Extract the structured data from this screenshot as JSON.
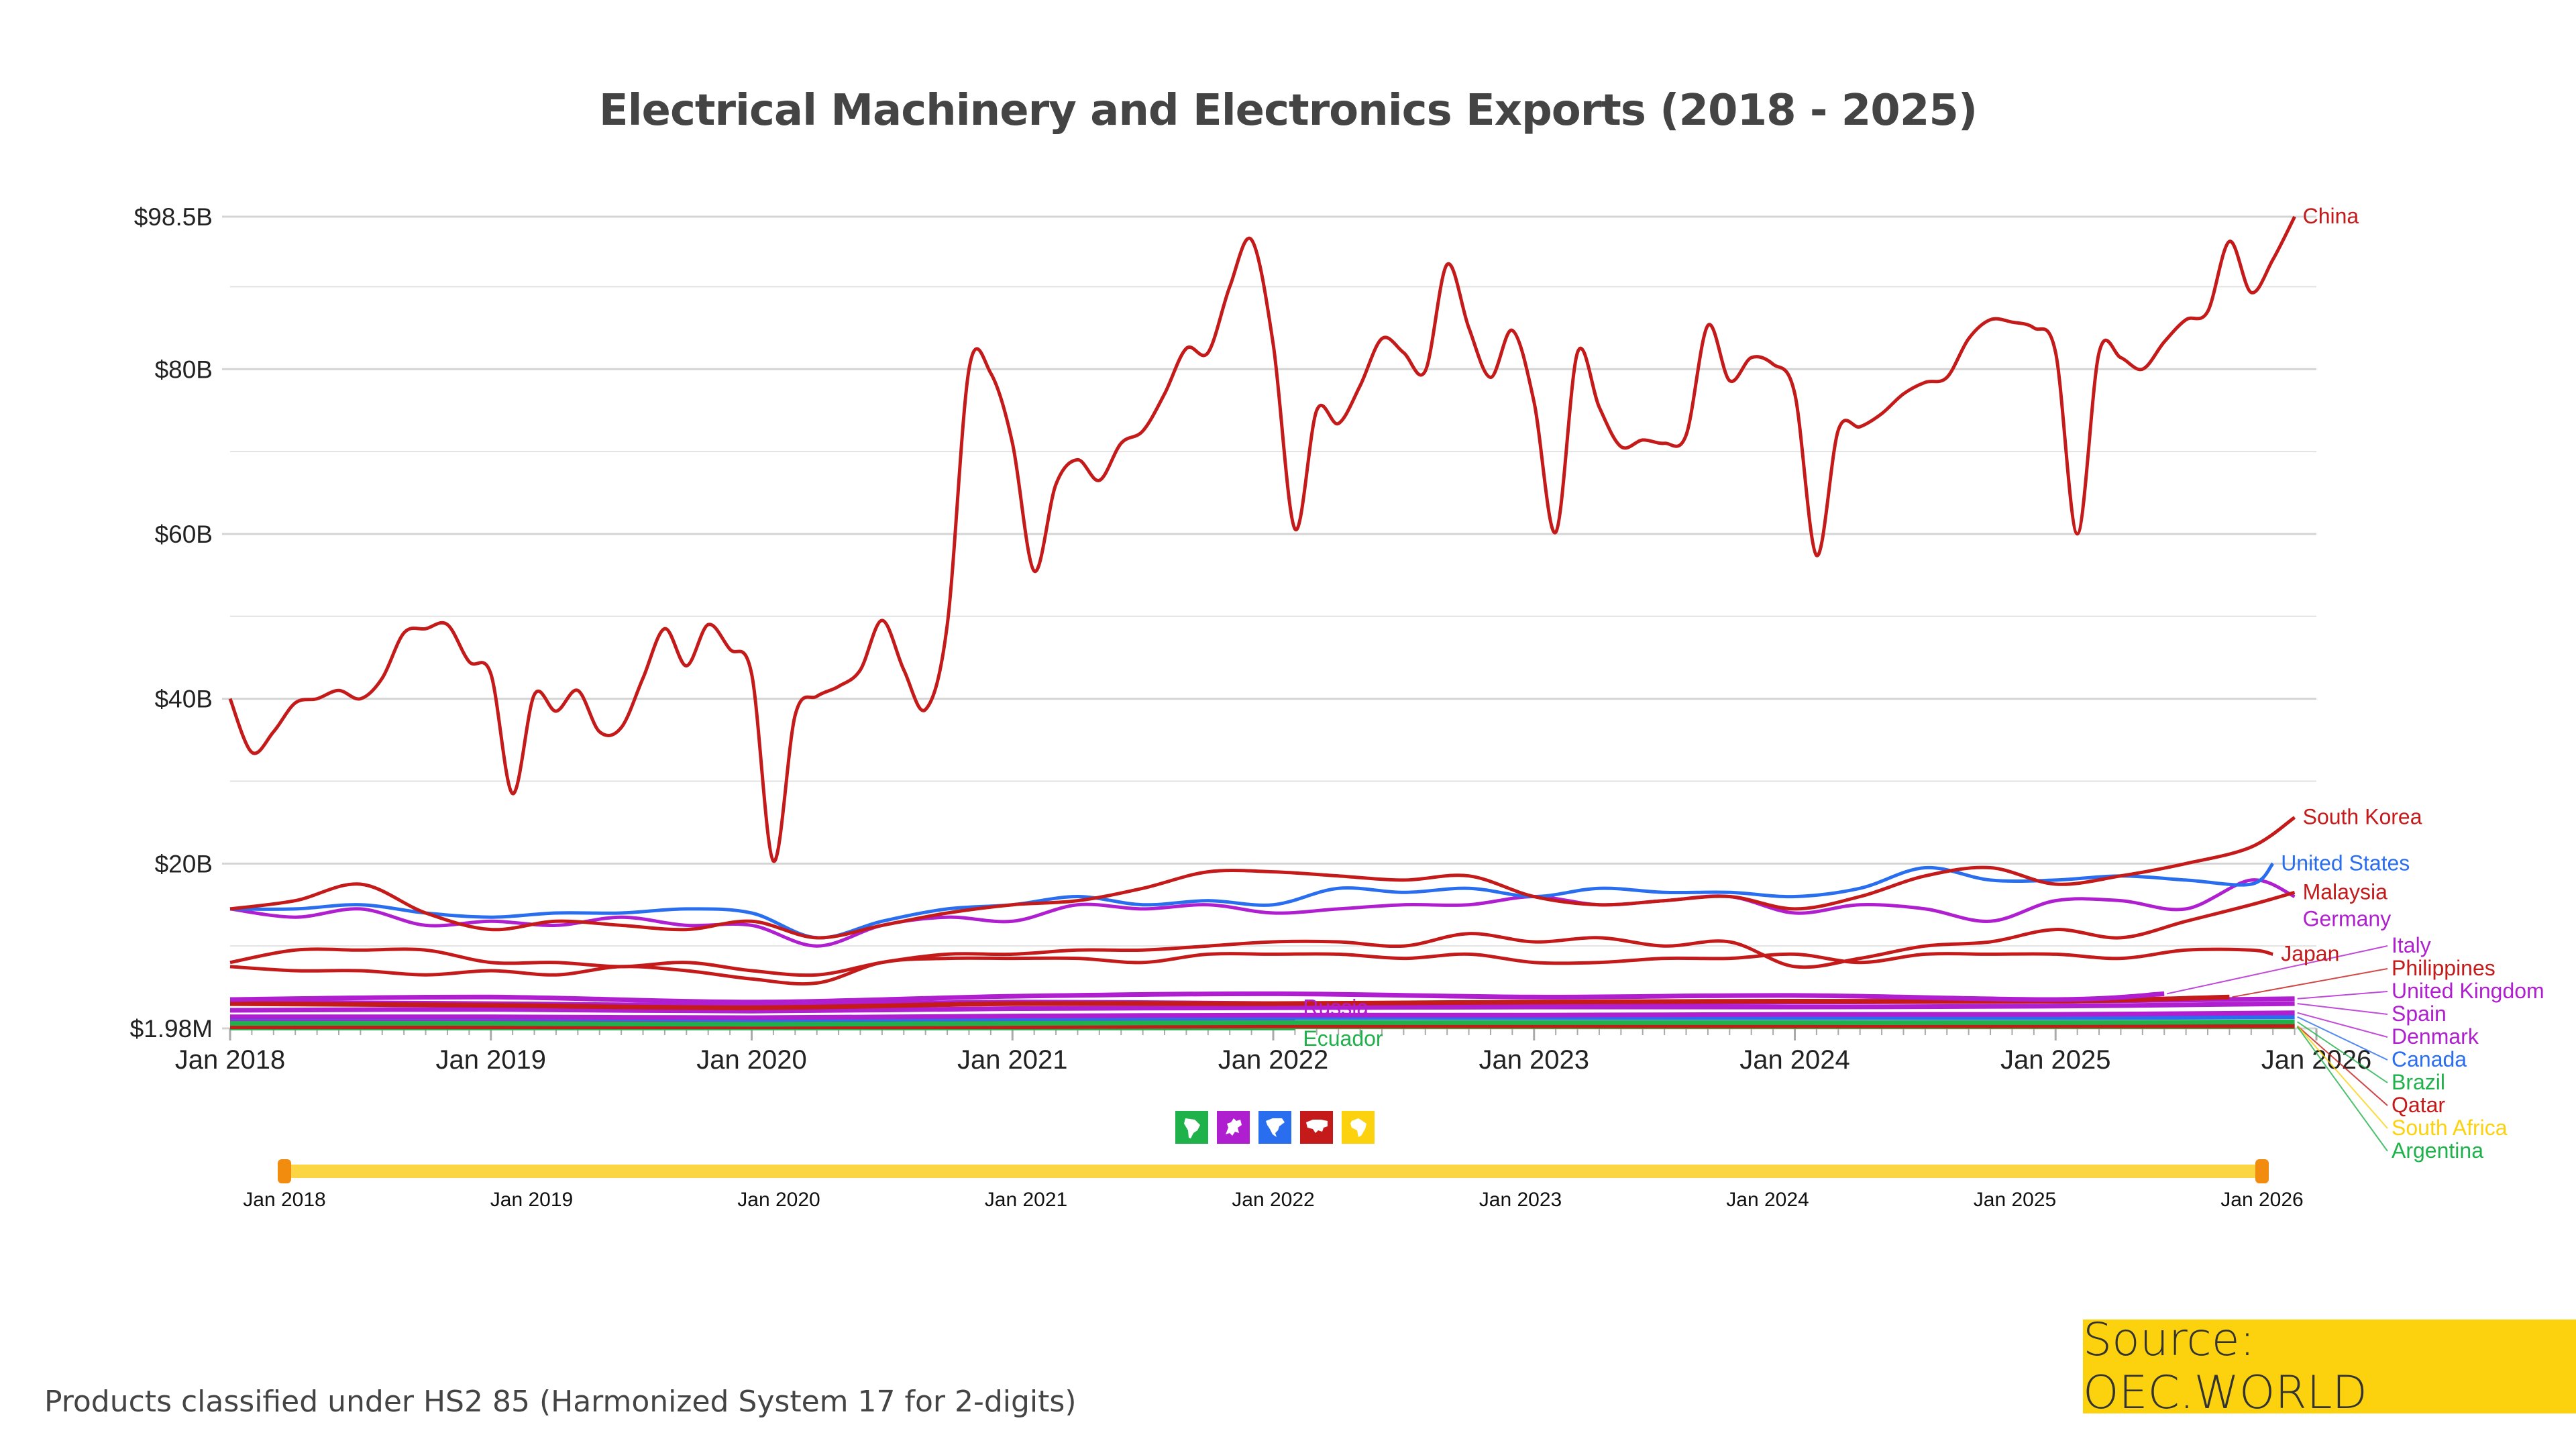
{
  "colors": {
    "asia": "#c41a1a",
    "europe": "#b01fcf",
    "north_america": "#2a6ef0",
    "south_america": "#1fb24a",
    "africa": "#fcd20f",
    "slider": "#fbd542",
    "slider_handle": "#f28c0f"
  },
  "continent_filters": [
    {
      "name": "South America",
      "icon": "south-america-icon",
      "color": "#1fb24a"
    },
    {
      "name": "Europe",
      "icon": "europe-icon",
      "color": "#b01fcf"
    },
    {
      "name": "North America",
      "icon": "north-america-icon",
      "color": "#2a6ef0"
    },
    {
      "name": "Asia",
      "icon": "asia-icon",
      "color": "#c41a1a"
    },
    {
      "name": "Africa",
      "icon": "africa-icon",
      "color": "#fcd20f"
    }
  ],
  "slider": {
    "range": [
      "Jan 2018",
      "Jan 2026"
    ],
    "labels": [
      "Jan 2018",
      "Jan 2019",
      "Jan 2020",
      "Jan 2021",
      "Jan 2022",
      "Jan 2023",
      "Jan 2024",
      "Jan 2025",
      "Jan 2026"
    ]
  },
  "footer": {
    "note": "Products classified under HS2 85 (Harmonized System 17 for 2-digits)",
    "source": "Source: OEC.WORLD"
  },
  "chart_data": {
    "type": "line",
    "title": "Electrical Machinery and Electronics Exports (2018 - 2025)",
    "xlabel": "",
    "ylabel": "",
    "unit": "billions USD",
    "xlim": [
      "2018-01",
      "2026-01"
    ],
    "ylim": [
      0.00198,
      98.5
    ],
    "y_ticks": [
      {
        "value": 98.5,
        "label": "$98.5B"
      },
      {
        "value": 80,
        "label": "$80B"
      },
      {
        "value": 60,
        "label": "$60B"
      },
      {
        "value": 40,
        "label": "$40B"
      },
      {
        "value": 20,
        "label": "$20B"
      },
      {
        "value": 0.00198,
        "label": "$1.98M"
      }
    ],
    "x_ticks": [
      "Jan 2018",
      "Jan 2019",
      "Jan 2020",
      "Jan 2021",
      "Jan 2022",
      "Jan 2023",
      "Jan 2024",
      "Jan 2025",
      "Jan 2026"
    ],
    "grid": true,
    "legend": "inline labels at line ends",
    "series": [
      {
        "name": "China",
        "color": "#c41a1a",
        "x": [
          "2018-01",
          "2018-02",
          "2018-03",
          "2018-04",
          "2018-05",
          "2018-06",
          "2018-07",
          "2018-08",
          "2018-09",
          "2018-10",
          "2018-11",
          "2018-12",
          "2019-01",
          "2019-02",
          "2019-03",
          "2019-04",
          "2019-05",
          "2019-06",
          "2019-07",
          "2019-08",
          "2019-09",
          "2019-10",
          "2019-11",
          "2019-12",
          "2020-01",
          "2020-02",
          "2020-03",
          "2020-04",
          "2020-05",
          "2020-06",
          "2020-07",
          "2020-08",
          "2020-09",
          "2020-10",
          "2020-11",
          "2020-12",
          "2021-01",
          "2021-02",
          "2021-03",
          "2021-04",
          "2021-05",
          "2021-06",
          "2021-07",
          "2021-08",
          "2021-09",
          "2021-10",
          "2021-11",
          "2021-12",
          "2022-01",
          "2022-02",
          "2022-03",
          "2022-04",
          "2022-05",
          "2022-06",
          "2022-07",
          "2022-08",
          "2022-09",
          "2022-10",
          "2022-11",
          "2022-12",
          "2023-01",
          "2023-02",
          "2023-03",
          "2023-04",
          "2023-05",
          "2023-06",
          "2023-07",
          "2023-08",
          "2023-09",
          "2023-10",
          "2023-11",
          "2023-12",
          "2024-01",
          "2024-02",
          "2024-03",
          "2024-04",
          "2024-05",
          "2024-06",
          "2024-07",
          "2024-08",
          "2024-09",
          "2024-10",
          "2024-11",
          "2024-12",
          "2025-01",
          "2025-02",
          "2025-03",
          "2025-04",
          "2025-05",
          "2025-06",
          "2025-07",
          "2025-08",
          "2025-09",
          "2025-10",
          "2025-11",
          "2025-12"
        ],
        "values": [
          40,
          33.5,
          36,
          39.5,
          40,
          41,
          40,
          42.5,
          48,
          48.5,
          49,
          44.5,
          43,
          28.5,
          40.5,
          38.5,
          41,
          36,
          36.5,
          42.5,
          48.5,
          44,
          49,
          46,
          43,
          20.3,
          38,
          40.3,
          41.5,
          43.5,
          49.5,
          43.5,
          38.7,
          49,
          80,
          79.5,
          71,
          55.5,
          66,
          69,
          66.5,
          71,
          72.5,
          77,
          82.5,
          82,
          90,
          95.7,
          83,
          60.6,
          75,
          73.4,
          78,
          83.7,
          82,
          79.8,
          92.7,
          85,
          79,
          84.7,
          76,
          60.2,
          82,
          75.4,
          70.6,
          71.4,
          71,
          72,
          85.3,
          78.6,
          81.4,
          80.6,
          77,
          57.4,
          72.6,
          73,
          74.6,
          77,
          78.4,
          79,
          83.7,
          86,
          85.7,
          85,
          82,
          60,
          82,
          81.4,
          80,
          83.3,
          86,
          87,
          95.5,
          89.3,
          93.3,
          98.5
        ]
      },
      {
        "name": "South Korea",
        "color": "#c41a1a",
        "x": [
          "2018-01",
          "2018-04",
          "2018-07",
          "2018-10",
          "2019-01",
          "2019-04",
          "2019-07",
          "2019-10",
          "2020-01",
          "2020-04",
          "2020-07",
          "2020-10",
          "2021-01",
          "2021-04",
          "2021-07",
          "2021-10",
          "2022-01",
          "2022-04",
          "2022-07",
          "2022-10",
          "2023-01",
          "2023-04",
          "2023-07",
          "2023-10",
          "2024-01",
          "2024-04",
          "2024-07",
          "2024-10",
          "2025-01",
          "2025-04",
          "2025-07",
          "2025-10",
          "2025-12"
        ],
        "values": [
          14.5,
          15.5,
          17.5,
          14,
          12,
          13,
          12.5,
          12,
          13,
          11,
          12.5,
          14,
          15,
          15.5,
          17,
          19,
          19,
          18.5,
          18,
          18.5,
          16,
          15,
          15.5,
          16,
          14.5,
          16,
          18.5,
          19.5,
          17.5,
          18.5,
          20,
          22,
          25.6
        ]
      },
      {
        "name": "United States",
        "color": "#2a6ef0",
        "x": [
          "2018-01",
          "2018-04",
          "2018-07",
          "2018-10",
          "2019-01",
          "2019-04",
          "2019-07",
          "2019-10",
          "2020-01",
          "2020-04",
          "2020-07",
          "2020-10",
          "2021-01",
          "2021-04",
          "2021-07",
          "2021-10",
          "2022-01",
          "2022-04",
          "2022-07",
          "2022-10",
          "2023-01",
          "2023-04",
          "2023-07",
          "2023-10",
          "2024-01",
          "2024-04",
          "2024-07",
          "2024-10",
          "2025-01",
          "2025-04",
          "2025-07",
          "2025-10",
          "2025-11"
        ],
        "values": [
          14.5,
          14.5,
          15,
          14,
          13.5,
          14,
          14,
          14.5,
          14,
          11,
          13,
          14.5,
          15,
          16,
          15,
          15.5,
          15,
          17,
          16.5,
          17,
          16,
          17,
          16.5,
          16.5,
          16,
          17,
          19.5,
          18,
          18,
          18.5,
          18,
          17.5,
          20
        ]
      },
      {
        "name": "Malaysia",
        "color": "#c41a1a",
        "x": [
          "2018-01",
          "2018-04",
          "2018-07",
          "2018-10",
          "2019-01",
          "2019-04",
          "2019-07",
          "2019-10",
          "2020-01",
          "2020-04",
          "2020-07",
          "2020-10",
          "2021-01",
          "2021-04",
          "2021-07",
          "2021-10",
          "2022-01",
          "2022-04",
          "2022-07",
          "2022-10",
          "2023-01",
          "2023-04",
          "2023-07",
          "2023-10",
          "2024-01",
          "2024-04",
          "2024-07",
          "2024-10",
          "2025-01",
          "2025-04",
          "2025-07",
          "2025-10",
          "2025-12"
        ],
        "values": [
          8,
          9.5,
          9.5,
          9.5,
          8,
          8,
          7.5,
          8,
          7,
          6.5,
          8,
          9,
          9,
          9.5,
          9.5,
          10,
          10.5,
          10.5,
          10,
          11.5,
          10.5,
          11,
          10,
          10.5,
          7.5,
          8.5,
          10,
          10.5,
          12,
          11,
          13,
          15,
          16.5
        ]
      },
      {
        "name": "Germany",
        "color": "#b01fcf",
        "x": [
          "2018-01",
          "2018-04",
          "2018-07",
          "2018-10",
          "2019-01",
          "2019-04",
          "2019-07",
          "2019-10",
          "2020-01",
          "2020-04",
          "2020-07",
          "2020-10",
          "2021-01",
          "2021-04",
          "2021-07",
          "2021-10",
          "2022-01",
          "2022-04",
          "2022-07",
          "2022-10",
          "2023-01",
          "2023-04",
          "2023-07",
          "2023-10",
          "2024-01",
          "2024-04",
          "2024-07",
          "2024-10",
          "2025-01",
          "2025-04",
          "2025-07",
          "2025-10",
          "2025-12"
        ],
        "values": [
          14.5,
          13.5,
          14.5,
          12.5,
          13,
          12.5,
          13.5,
          12.5,
          12.5,
          10,
          12.5,
          13.5,
          13,
          15,
          14.5,
          15,
          14,
          14.5,
          15,
          15,
          16,
          15,
          15.5,
          16,
          14,
          15,
          14.5,
          13,
          15.5,
          15.5,
          14.5,
          18,
          16
        ]
      },
      {
        "name": "Japan",
        "color": "#c41a1a",
        "x": [
          "2018-01",
          "2018-04",
          "2018-07",
          "2018-10",
          "2019-01",
          "2019-04",
          "2019-07",
          "2019-10",
          "2020-01",
          "2020-04",
          "2020-07",
          "2020-10",
          "2021-01",
          "2021-04",
          "2021-07",
          "2021-10",
          "2022-01",
          "2022-04",
          "2022-07",
          "2022-10",
          "2023-01",
          "2023-04",
          "2023-07",
          "2023-10",
          "2024-01",
          "2024-04",
          "2024-07",
          "2024-10",
          "2025-01",
          "2025-04",
          "2025-07",
          "2025-10",
          "2025-11"
        ],
        "values": [
          7.5,
          7,
          7,
          6.5,
          7,
          6.5,
          7.5,
          7,
          6,
          5.5,
          8,
          8.5,
          8.5,
          8.5,
          8,
          9,
          9,
          9,
          8.5,
          9,
          8,
          8,
          8.5,
          8.5,
          9,
          8,
          9,
          9,
          9,
          8.5,
          9.5,
          9.5,
          9
        ]
      },
      {
        "name": "Italy",
        "color": "#b01fcf",
        "x": [
          "2018-01",
          "2019-01",
          "2020-01",
          "2021-01",
          "2022-01",
          "2023-01",
          "2024-01",
          "2025-01",
          "2025-06"
        ],
        "values": [
          3.5,
          3.8,
          3.2,
          3.9,
          4.2,
          3.8,
          4.0,
          3.5,
          4.2
        ]
      },
      {
        "name": "Philippines",
        "color": "#c41a1a",
        "x": [
          "2018-01",
          "2019-01",
          "2020-01",
          "2021-01",
          "2022-01",
          "2023-01",
          "2024-01",
          "2025-01",
          "2025-09"
        ],
        "values": [
          3.0,
          2.8,
          2.5,
          3.0,
          3.0,
          3.2,
          3.3,
          3.3,
          3.8
        ]
      },
      {
        "name": "United Kingdom",
        "color": "#b01fcf",
        "x": [
          "2018-01",
          "2019-01",
          "2020-01",
          "2021-01",
          "2022-01",
          "2023-01",
          "2024-01",
          "2025-01",
          "2025-12"
        ],
        "values": [
          3.2,
          3.0,
          2.8,
          3.2,
          3.0,
          3.0,
          3.2,
          3.3,
          3.6
        ]
      },
      {
        "name": "Spain",
        "color": "#b01fcf",
        "x": [
          "2018-01",
          "2019-01",
          "2020-01",
          "2021-01",
          "2022-01",
          "2023-01",
          "2024-01",
          "2025-01",
          "2025-12"
        ],
        "values": [
          2.2,
          2.3,
          2.1,
          2.4,
          2.5,
          2.6,
          2.6,
          2.7,
          3.0
        ]
      },
      {
        "name": "Denmark",
        "color": "#b01fcf",
        "x": [
          "2018-01",
          "2019-01",
          "2020-01",
          "2021-01",
          "2022-01",
          "2023-01",
          "2024-01",
          "2025-01",
          "2025-12"
        ],
        "values": [
          1.4,
          1.4,
          1.3,
          1.5,
          1.6,
          1.6,
          1.7,
          1.7,
          1.9
        ]
      },
      {
        "name": "Canada",
        "color": "#2a6ef0",
        "x": [
          "2018-01",
          "2019-01",
          "2020-01",
          "2021-01",
          "2022-01",
          "2023-01",
          "2024-01",
          "2025-01",
          "2025-12"
        ],
        "values": [
          1.3,
          1.3,
          1.1,
          1.2,
          1.3,
          1.3,
          1.3,
          1.3,
          1.4
        ]
      },
      {
        "name": "Brazil",
        "color": "#1fb24a",
        "x": [
          "2018-01",
          "2019-01",
          "2020-01",
          "2021-01",
          "2022-01",
          "2023-01",
          "2024-01",
          "2025-01",
          "2025-12"
        ],
        "values": [
          0.6,
          0.6,
          0.5,
          0.6,
          0.7,
          0.7,
          0.7,
          0.7,
          0.8
        ]
      },
      {
        "name": "Qatar",
        "color": "#c41a1a",
        "x": [
          "2018-01",
          "2019-01",
          "2020-01",
          "2021-01",
          "2022-01",
          "2023-01",
          "2024-01",
          "2025-01",
          "2025-12"
        ],
        "values": [
          0.2,
          0.2,
          0.2,
          0.2,
          0.3,
          0.3,
          0.3,
          0.3,
          0.3
        ]
      },
      {
        "name": "South Africa",
        "color": "#fcd20f",
        "x": [
          "2018-01",
          "2019-01",
          "2020-01",
          "2021-01",
          "2022-01",
          "2023-01",
          "2024-01",
          "2025-01",
          "2025-12"
        ],
        "values": [
          0.3,
          0.3,
          0.3,
          0.3,
          0.3,
          0.3,
          0.3,
          0.3,
          0.3
        ]
      },
      {
        "name": "Argentina",
        "color": "#1fb24a",
        "x": [
          "2018-01",
          "2019-01",
          "2020-01",
          "2021-01",
          "2022-01",
          "2023-01",
          "2024-01",
          "2025-01",
          "2025-12"
        ],
        "values": [
          0.2,
          0.2,
          0.2,
          0.2,
          0.2,
          0.2,
          0.2,
          0.2,
          0.2
        ]
      },
      {
        "name": "Russia",
        "color": "#b01fcf",
        "x": [
          "2018-01",
          "2019-01",
          "2020-01",
          "2021-01",
          "2022-02"
        ],
        "values": [
          1.0,
          1.0,
          0.9,
          1.0,
          1.0
        ]
      },
      {
        "name": "Ecuador",
        "color": "#1fb24a",
        "x": [
          "2018-01",
          "2019-01",
          "2020-01",
          "2021-01",
          "2022-02"
        ],
        "values": [
          0.05,
          0.05,
          0.05,
          0.05,
          0.05
        ]
      }
    ]
  }
}
